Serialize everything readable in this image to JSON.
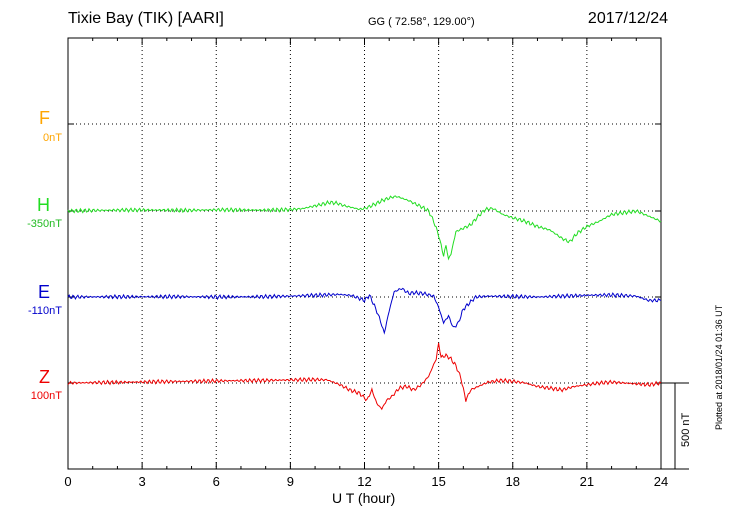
{
  "header": {
    "station": "Tixie Bay (TIK)  [AARI]",
    "coords": "GG ( 72.58°, 129.00°)",
    "date": "2017/12/24"
  },
  "footer": {
    "plotted": "Plotted at 2018/01/24 01:36 UT"
  },
  "chart_data": {
    "type": "line",
    "title": "Tixie Bay (TIK)  [AARI]",
    "xlabel": "U T (hour)",
    "ylabel": "",
    "xlim": [
      0,
      24
    ],
    "xticks": [
      0,
      3,
      6,
      9,
      12,
      15,
      18,
      21,
      24
    ],
    "xtick_labels": [
      "0",
      "3",
      "6",
      "9",
      "12",
      "15",
      "18",
      "21",
      "24"
    ],
    "grid": true,
    "scale_bar_nT": 500,
    "scale_label": "500 nT",
    "series": [
      {
        "name": "F",
        "baseline_label": "0nT",
        "color": "#ffa500",
        "x": [],
        "y": []
      },
      {
        "name": "H",
        "baseline_label": "-350nT",
        "color": "#22dd22",
        "x": [
          0,
          1,
          2,
          3,
          4,
          5,
          6,
          7,
          8,
          9,
          9.5,
          10,
          10.3,
          10.6,
          10.9,
          11.2,
          11.5,
          11.8,
          12.0,
          12.2,
          12.5,
          12.7,
          12.9,
          13.1,
          13.3,
          13.5,
          13.8,
          14.0,
          14.3,
          14.6,
          14.8,
          15.0,
          15.1,
          15.2,
          15.3,
          15.4,
          15.5,
          15.7,
          16.0,
          16.3,
          16.6,
          16.9,
          17.2,
          17.6,
          18.0,
          18.5,
          19.0,
          19.5,
          20.0,
          20.3,
          20.6,
          21.0,
          21.5,
          22.0,
          22.5,
          23.0,
          23.5,
          24.0
        ],
        "y": [
          0,
          3,
          5,
          6,
          5,
          4,
          7,
          6,
          5,
          8,
          14,
          30,
          40,
          50,
          45,
          30,
          20,
          10,
          15,
          25,
          45,
          60,
          70,
          80,
          85,
          75,
          60,
          45,
          25,
          0,
          -60,
          -140,
          -200,
          -260,
          -200,
          -280,
          -250,
          -120,
          -100,
          -80,
          -30,
          10,
          15,
          -20,
          -40,
          -60,
          -90,
          -110,
          -160,
          -180,
          -130,
          -90,
          -60,
          -20,
          -10,
          0,
          -30,
          -60
        ]
      },
      {
        "name": "E",
        "baseline_label": "-110nT",
        "color": "#0000cc",
        "x": [
          0,
          2,
          4,
          6,
          8,
          9,
          10,
          11,
          11.5,
          12.0,
          12.2,
          12.4,
          12.6,
          12.8,
          13.0,
          13.2,
          13.5,
          13.8,
          14.0,
          14.4,
          14.8,
          15.0,
          15.2,
          15.4,
          15.6,
          15.8,
          16.0,
          16.5,
          17,
          18,
          19,
          20,
          21,
          22,
          23,
          23.5,
          24
        ],
        "y": [
          0,
          1,
          2,
          0,
          2,
          5,
          10,
          15,
          8,
          -20,
          10,
          -50,
          -120,
          -210,
          -80,
          30,
          50,
          20,
          25,
          20,
          5,
          -60,
          -150,
          -110,
          -180,
          -150,
          -70,
          0,
          5,
          3,
          0,
          5,
          10,
          12,
          5,
          -20,
          -20
        ]
      },
      {
        "name": "Z",
        "baseline_label": "100nT",
        "color": "#ee0000",
        "x": [
          0,
          1,
          2,
          3,
          4,
          5,
          6,
          7,
          8,
          9,
          10,
          10.5,
          11.0,
          11.4,
          11.8,
          12.1,
          12.3,
          12.5,
          12.7,
          12.9,
          13.1,
          13.4,
          13.7,
          14.0,
          14.3,
          14.6,
          14.9,
          15.0,
          15.1,
          15.3,
          15.5,
          15.7,
          15.9,
          16.1,
          16.3,
          16.6,
          17.0,
          17.5,
          18.0,
          18.5,
          19.0,
          19.5,
          20.0,
          20.5,
          21.0,
          21.5,
          22.0,
          22.5,
          23.0,
          23.5,
          24.0
        ],
        "y": [
          0,
          2,
          4,
          6,
          8,
          10,
          12,
          14,
          15,
          18,
          20,
          18,
          -10,
          -40,
          -60,
          -100,
          -40,
          -120,
          -150,
          -100,
          -80,
          -30,
          -20,
          -40,
          -10,
          40,
          140,
          230,
          150,
          160,
          140,
          100,
          30,
          -100,
          -40,
          -20,
          5,
          15,
          10,
          0,
          -20,
          -30,
          -40,
          -20,
          -10,
          0,
          5,
          0,
          -5,
          -10,
          0
        ]
      }
    ]
  }
}
